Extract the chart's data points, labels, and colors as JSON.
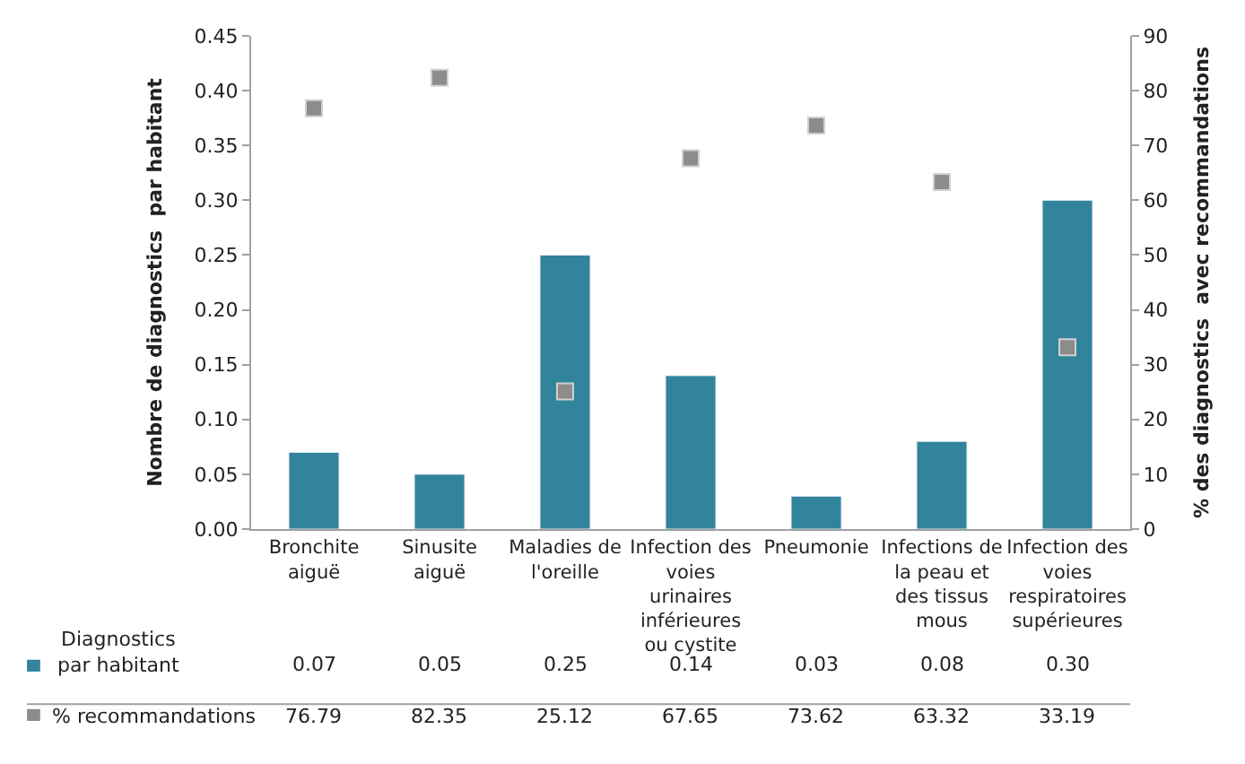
{
  "chart_data": {
    "type": "bar",
    "ylabel": "Nombre de diagnostics  par habitant",
    "y2label": "% des diagnostics  avec recommandations",
    "categories": [
      "Bronchite\naiguë",
      "Sinusite\naiguë",
      "Maladies de\nl'oreille",
      "Infection des\nvoies\nurinaires\ninférieures\nou cystite",
      "Pneumonie",
      "Infections de\nla peau et\ndes tissus\nmous",
      "Infection des\nvoies\nrespiratoires\nsupérieures"
    ],
    "series": [
      {
        "name": "Diagnostics\npar habitant",
        "color": "#31849b",
        "values": [
          0.07,
          0.05,
          0.25,
          0.14,
          0.03,
          0.08,
          0.3
        ],
        "value_labels": [
          "0.07",
          "0.05",
          "0.25",
          "0.14",
          "0.03",
          "0.08",
          "0.30"
        ]
      },
      {
        "name": "% recommandations",
        "type": "scatter",
        "axis": "y2",
        "color": "#8c8c8c",
        "marker": "square",
        "values": [
          76.79,
          82.35,
          25.12,
          67.65,
          73.62,
          63.32,
          33.19
        ],
        "value_labels": [
          "76.79",
          "82.35",
          "25.12",
          "67.65",
          "73.62",
          "63.32",
          "33.19"
        ]
      }
    ],
    "ylim": [
      0,
      0.45
    ],
    "yticks": [
      {
        "value": 0,
        "label": "0.00"
      },
      {
        "value": 0.05,
        "label": "0.05"
      },
      {
        "value": 0.1,
        "label": "0.10"
      },
      {
        "value": 0.15,
        "label": "0.15"
      },
      {
        "value": 0.2,
        "label": "0.20"
      },
      {
        "value": 0.25,
        "label": "0.25"
      },
      {
        "value": 0.3,
        "label": "0.30"
      },
      {
        "value": 0.35,
        "label": "0.35"
      },
      {
        "value": 0.4,
        "label": "0.40"
      },
      {
        "value": 0.45,
        "label": "0.45"
      }
    ],
    "y2lim": [
      0,
      90
    ],
    "y2ticks": [
      0,
      10,
      20,
      30,
      40,
      50,
      60,
      70,
      80,
      90
    ],
    "legend": "bottom",
    "grid": false
  }
}
